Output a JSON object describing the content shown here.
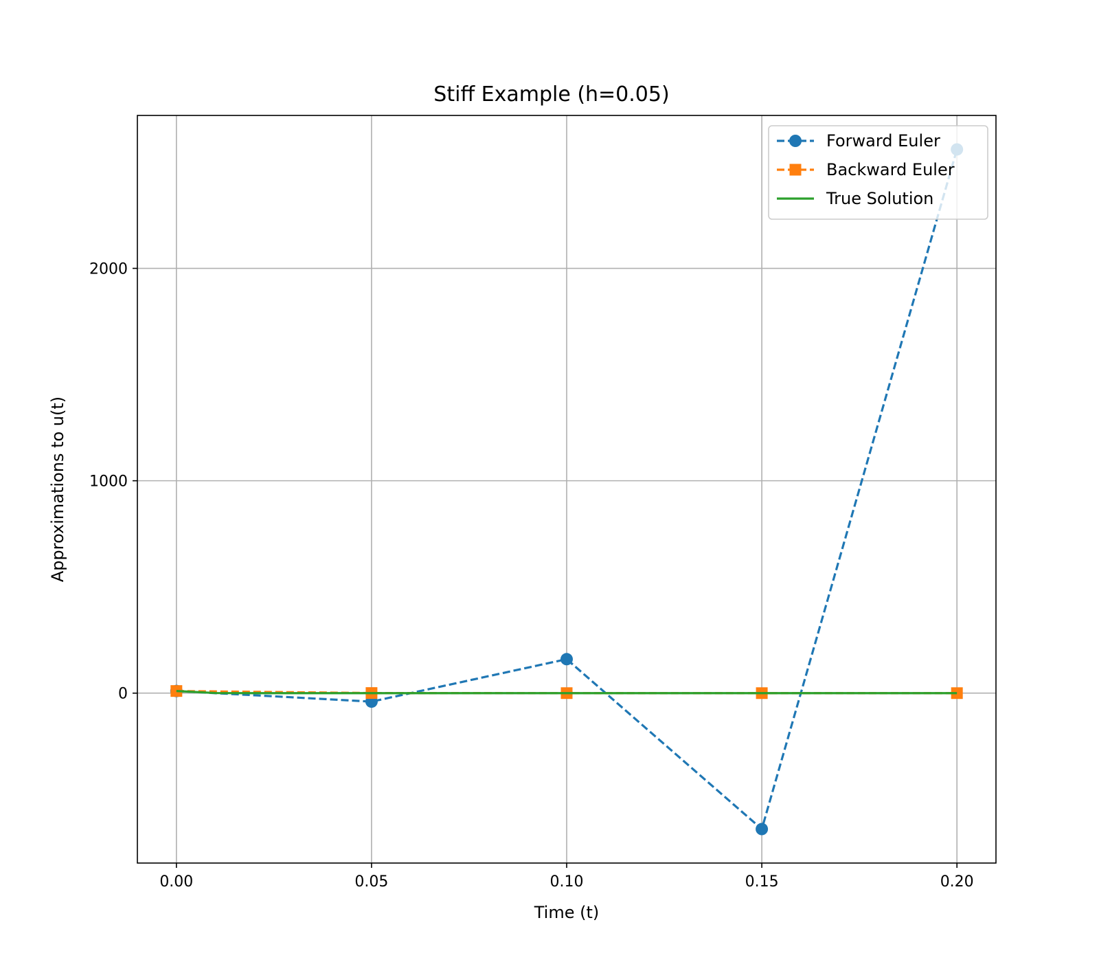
{
  "chart_data": {
    "type": "line",
    "title": "Stiff Example (h=0.05)",
    "xlabel": "Time (t)",
    "ylabel": "Approximations to u(t)",
    "xlim": [
      -0.01,
      0.21
    ],
    "ylim": [
      -800,
      2720
    ],
    "xticks": [
      0.0,
      0.05,
      0.1,
      0.15,
      0.2
    ],
    "xtick_labels": [
      "0.00",
      "0.05",
      "0.10",
      "0.15",
      "0.20"
    ],
    "yticks": [
      0,
      1000,
      2000
    ],
    "ytick_labels": [
      "0",
      "1000",
      "2000"
    ],
    "grid": true,
    "legend_position": "top-right",
    "series": [
      {
        "name": "Forward Euler",
        "color": "#1f77b4",
        "line_style": "dashed",
        "marker": "circle",
        "x": [
          0.0,
          0.05,
          0.1,
          0.15,
          0.2
        ],
        "y": [
          10,
          -40,
          160,
          -640,
          2560
        ]
      },
      {
        "name": "Backward Euler",
        "color": "#ff7f0e",
        "line_style": "dashed",
        "marker": "square",
        "x": [
          0.0,
          0.05,
          0.1,
          0.15,
          0.2
        ],
        "y": [
          10,
          0.5,
          0.05,
          0.005,
          0.0005
        ]
      },
      {
        "name": "True Solution",
        "color": "#2ca02c",
        "line_style": "solid",
        "marker": "none",
        "x": [
          0.0,
          0.01,
          0.02,
          0.03,
          0.05,
          0.08,
          0.1,
          0.15,
          0.2
        ],
        "y": [
          10,
          0.5,
          0.02,
          0.001,
          0,
          0,
          0,
          0,
          0
        ]
      }
    ]
  }
}
